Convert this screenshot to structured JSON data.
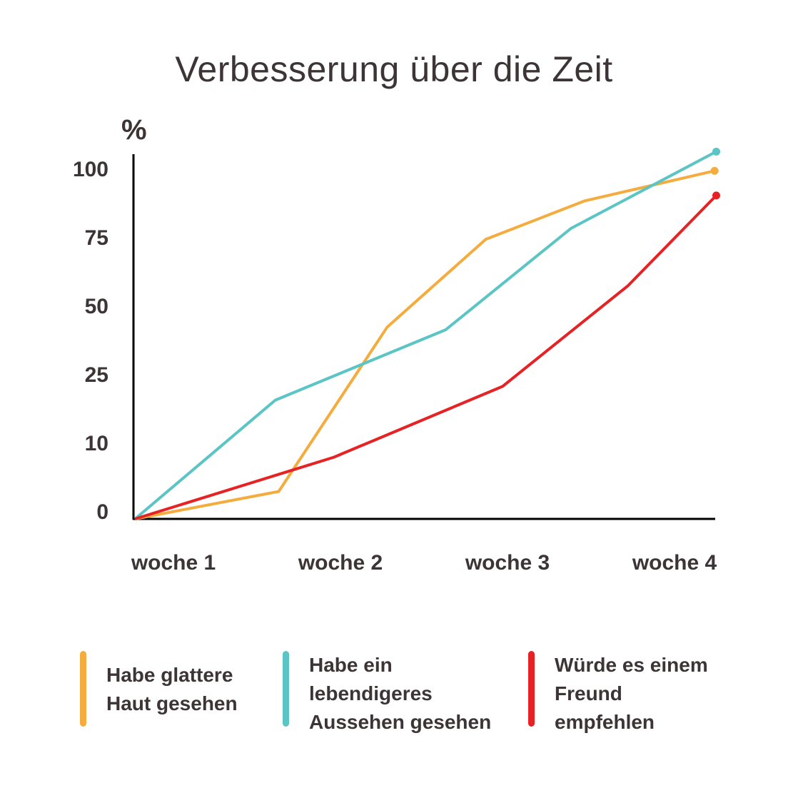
{
  "chart_data": {
    "type": "line",
    "title": "Verbesserung über die Zeit",
    "ylabel": "%",
    "xlabel": "",
    "x_ticks": [
      "woche 1",
      "woche 2",
      "woche 3",
      "woche 4"
    ],
    "y_ticks": [
      0,
      10,
      25,
      50,
      75,
      100
    ],
    "y_scale": "non-linear (evenly spaced ticks 0,10,25,50,75,100)",
    "grid": false,
    "legend_placement": "bottom",
    "series": [
      {
        "name": "Habe glattere Haut gesehen",
        "color": "#F5AC3E",
        "x": [
          0.77,
          1.63,
          2.28,
          2.87,
          3.46,
          4.24
        ],
        "y": [
          0,
          4,
          45,
          77,
          91,
          102
        ],
        "end_marker": true
      },
      {
        "name": "Habe ein lebendigeres Aussehen gesehen",
        "color": "#5BC4C4",
        "x": [
          0.77,
          1.61,
          2.63,
          3.38,
          4.25
        ],
        "y": [
          0,
          21,
          44,
          81,
          109
        ],
        "end_marker": true
      },
      {
        "name": "Würde es einem Freund empfehlen",
        "color": "#E62224",
        "x": [
          0.77,
          1.96,
          2.97,
          3.72,
          4.25
        ],
        "y": [
          0,
          9,
          24,
          60,
          93
        ],
        "end_marker": true
      }
    ]
  },
  "legend": [
    {
      "text": "Habe glattere\nHaut gesehen",
      "color": "#F5AC3E"
    },
    {
      "text": "Habe ein\nlebendigeres\nAussehen gesehen",
      "color": "#5BC4C4"
    },
    {
      "text": "Würde es einem\nFreund\nempfehlen",
      "color": "#E62224"
    }
  ]
}
